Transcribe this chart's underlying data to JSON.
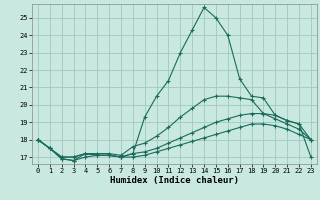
{
  "xlabel": "Humidex (Indice chaleur)",
  "bg_color": "#c8e8e0",
  "grid_color": "#a0c8c0",
  "line_color": "#1a6b5a",
  "xlim": [
    -0.5,
    23.5
  ],
  "ylim": [
    16.6,
    25.8
  ],
  "xticks": [
    0,
    1,
    2,
    3,
    4,
    5,
    6,
    7,
    8,
    9,
    10,
    11,
    12,
    13,
    14,
    15,
    16,
    17,
    18,
    19,
    20,
    21,
    22,
    23
  ],
  "yticks": [
    17,
    18,
    19,
    20,
    21,
    22,
    23,
    24,
    25
  ],
  "curve1_x": [
    0,
    1,
    2,
    3,
    4,
    5,
    6,
    7,
    8,
    9,
    10,
    11,
    12,
    13,
    14,
    15,
    16,
    17,
    18,
    19,
    20,
    21,
    22,
    23
  ],
  "curve1_y": [
    18.0,
    17.5,
    16.9,
    16.8,
    17.2,
    17.1,
    17.1,
    17.0,
    17.2,
    19.3,
    20.5,
    21.4,
    23.0,
    24.3,
    25.6,
    25.0,
    24.0,
    21.5,
    20.5,
    20.4,
    19.4,
    19.1,
    18.9,
    17.0
  ],
  "curve2_x": [
    0,
    1,
    2,
    3,
    4,
    5,
    6,
    7,
    8,
    9,
    10,
    11,
    12,
    13,
    14,
    15,
    16,
    17,
    18,
    19,
    20,
    21,
    22,
    23
  ],
  "curve2_y": [
    18.0,
    17.5,
    17.0,
    17.0,
    17.2,
    17.2,
    17.2,
    17.1,
    17.6,
    17.8,
    18.2,
    18.7,
    19.3,
    19.8,
    20.3,
    20.5,
    20.5,
    20.4,
    20.3,
    19.5,
    19.4,
    19.1,
    18.9,
    18.0
  ],
  "curve3_x": [
    0,
    1,
    2,
    3,
    4,
    5,
    6,
    7,
    8,
    9,
    10,
    11,
    12,
    13,
    14,
    15,
    16,
    17,
    18,
    19,
    20,
    21,
    22,
    23
  ],
  "curve3_y": [
    18.0,
    17.5,
    17.0,
    17.0,
    17.2,
    17.1,
    17.1,
    17.0,
    17.2,
    17.3,
    17.5,
    17.8,
    18.1,
    18.4,
    18.7,
    19.0,
    19.2,
    19.4,
    19.5,
    19.5,
    19.2,
    18.9,
    18.6,
    18.0
  ],
  "curve4_x": [
    0,
    1,
    2,
    3,
    4,
    5,
    6,
    7,
    8,
    9,
    10,
    11,
    12,
    13,
    14,
    15,
    16,
    17,
    18,
    19,
    20,
    21,
    22,
    23
  ],
  "curve4_y": [
    18.0,
    17.5,
    16.9,
    16.8,
    17.0,
    17.1,
    17.1,
    17.0,
    17.0,
    17.1,
    17.3,
    17.5,
    17.7,
    17.9,
    18.1,
    18.3,
    18.5,
    18.7,
    18.9,
    18.9,
    18.8,
    18.6,
    18.3,
    18.0
  ]
}
